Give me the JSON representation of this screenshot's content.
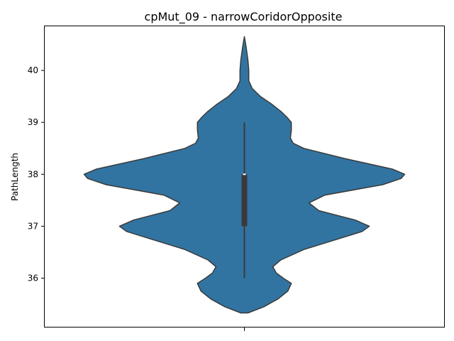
{
  "chart_data": {
    "type": "violin",
    "title": "cpMut_09 - narrowCoridorOpposite",
    "xlabel": "",
    "ylabel": "PathLength",
    "ylim": [
      35.05,
      40.85
    ],
    "yticks": [
      36,
      37,
      38,
      39,
      40
    ],
    "grid": false,
    "legend": "none",
    "colors": {
      "fill": "#3274a1",
      "edge": "#3a3a3a",
      "box": "#3a3a3a",
      "median": "#ffffff"
    },
    "violin": {
      "min": 36,
      "q1": 37,
      "median": 38,
      "q3": 38,
      "max": 39,
      "density_profile": [
        [
          35.33,
          0.04
        ],
        [
          35.45,
          0.22
        ],
        [
          35.6,
          0.38
        ],
        [
          35.75,
          0.49
        ],
        [
          35.9,
          0.53
        ],
        [
          36.0,
          0.44
        ],
        [
          36.1,
          0.36
        ],
        [
          36.22,
          0.32
        ],
        [
          36.35,
          0.41
        ],
        [
          36.55,
          0.67
        ],
        [
          36.75,
          1.05
        ],
        [
          36.9,
          1.33
        ],
        [
          37.0,
          1.41
        ],
        [
          37.12,
          1.25
        ],
        [
          37.3,
          0.84
        ],
        [
          37.45,
          0.73
        ],
        [
          37.6,
          0.91
        ],
        [
          37.8,
          1.56
        ],
        [
          37.92,
          1.77
        ],
        [
          38.0,
          1.81
        ],
        [
          38.1,
          1.67
        ],
        [
          38.3,
          1.14
        ],
        [
          38.5,
          0.67
        ],
        [
          38.6,
          0.55
        ],
        [
          38.7,
          0.52
        ],
        [
          38.85,
          0.53
        ],
        [
          39.0,
          0.53
        ],
        [
          39.1,
          0.48
        ],
        [
          39.2,
          0.42
        ],
        [
          39.35,
          0.31
        ],
        [
          39.5,
          0.18
        ],
        [
          39.65,
          0.09
        ],
        [
          39.8,
          0.05
        ],
        [
          40.0,
          0.05
        ],
        [
          40.2,
          0.04
        ],
        [
          40.45,
          0.02
        ],
        [
          40.65,
          0.0
        ]
      ]
    }
  }
}
